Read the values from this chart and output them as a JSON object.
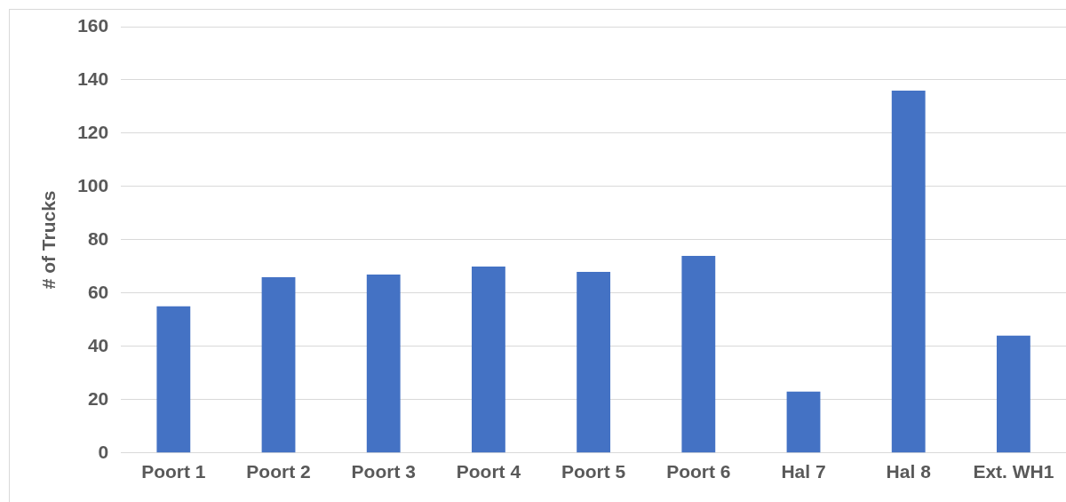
{
  "chart_data": {
    "type": "bar",
    "ylabel": "# of Trucks",
    "categories": [
      "Poort 1",
      "Poort 2",
      "Poort 3",
      "Poort 4",
      "Poort 5",
      "Poort 6",
      "Hal 7",
      "Hal 8",
      "Ext. WH1"
    ],
    "values": [
      55,
      66,
      67,
      70,
      68,
      74,
      23,
      136,
      44
    ],
    "color": "#4472c4",
    "ylim": [
      0,
      160
    ],
    "yticks": [
      0,
      20,
      40,
      60,
      80,
      100,
      120,
      140,
      160
    ],
    "grid": "y",
    "legend": false
  }
}
